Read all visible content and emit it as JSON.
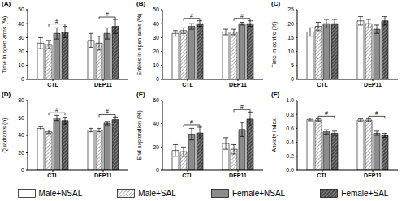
{
  "chart_data": [
    {
      "type": "bar",
      "title": "(A)",
      "ylabel": "Time in open arms (%)",
      "categories": [
        "CTL",
        "DEP11"
      ],
      "ylim": [
        0,
        50
      ],
      "yticks": [
        0,
        10,
        20,
        30,
        40,
        50
      ],
      "grid": false,
      "series": [
        {
          "name": "Male+NSAL",
          "color": "#ffffff",
          "values": [
            26,
            28
          ],
          "errors": [
            4,
            5
          ]
        },
        {
          "name": "Male+SAL",
          "color": "#ffffff",
          "values": [
            25,
            26
          ],
          "errors": [
            3,
            5
          ]
        },
        {
          "name": "Female+NSAL",
          "color": "#8c8c8c",
          "values": [
            33,
            33
          ],
          "errors": [
            4,
            4
          ]
        },
        {
          "name": "Female+SAL",
          "color": "#4d4d4d",
          "values": [
            34,
            38
          ],
          "errors": [
            4,
            5
          ]
        }
      ],
      "annotations": [
        {
          "category": "CTL",
          "from": "Male+SAL",
          "to": "Female+SAL",
          "text": "#"
        },
        {
          "category": "DEP11",
          "from": "Male+SAL",
          "to": "Female+SAL",
          "text": "#"
        }
      ]
    },
    {
      "type": "bar",
      "title": "(B)",
      "ylabel": "Entries in open arms (%)",
      "categories": [
        "CTL",
        "DEP11"
      ],
      "ylim": [
        0,
        50
      ],
      "yticks": [
        0,
        10,
        20,
        30,
        40,
        50
      ],
      "grid": false,
      "series": [
        {
          "name": "Male+NSAL",
          "color": "#ffffff",
          "values": [
            33,
            34
          ],
          "errors": [
            2,
            2
          ]
        },
        {
          "name": "Male+SAL",
          "color": "#ffffff",
          "values": [
            35,
            34
          ],
          "errors": [
            2,
            2
          ]
        },
        {
          "name": "Female+NSAL",
          "color": "#8c8c8c",
          "values": [
            38,
            40
          ],
          "errors": [
            2,
            1
          ]
        },
        {
          "name": "Female+SAL",
          "color": "#4d4d4d",
          "values": [
            40,
            40
          ],
          "errors": [
            2,
            2
          ]
        }
      ],
      "annotations": [
        {
          "category": "CTL",
          "from": "Male+SAL",
          "to": "Female+SAL",
          "text": "#"
        },
        {
          "category": "DEP11",
          "from": "Male+SAL",
          "to": "Female+SAL",
          "text": "#"
        }
      ]
    },
    {
      "type": "bar",
      "title": "(C)",
      "ylabel": "Time in centre (%)",
      "categories": [
        "CTL",
        "DEP11"
      ],
      "ylim": [
        0,
        25
      ],
      "yticks": [
        0,
        5,
        10,
        15,
        20,
        25
      ],
      "grid": false,
      "series": [
        {
          "name": "Male+NSAL",
          "color": "#ffffff",
          "values": [
            17,
            21
          ],
          "errors": [
            1.5,
            1.5
          ]
        },
        {
          "name": "Male+SAL",
          "color": "#ffffff",
          "values": [
            19,
            20
          ],
          "errors": [
            1.5,
            1.5
          ]
        },
        {
          "name": "Female+NSAL",
          "color": "#8c8c8c",
          "values": [
            20,
            18
          ],
          "errors": [
            1.5,
            1.5
          ]
        },
        {
          "name": "Female+SAL",
          "color": "#4d4d4d",
          "values": [
            20,
            21
          ],
          "errors": [
            1.5,
            1.5
          ]
        }
      ],
      "annotations": []
    },
    {
      "type": "bar",
      "title": "(D)",
      "ylabel": "Quadrants (n)",
      "categories": [
        "CTL",
        "DEP11"
      ],
      "ylim": [
        0,
        80
      ],
      "yticks": [
        0,
        20,
        40,
        60,
        80
      ],
      "grid": false,
      "series": [
        {
          "name": "Male+NSAL",
          "color": "#ffffff",
          "values": [
            48,
            46
          ],
          "errors": [
            2,
            2
          ]
        },
        {
          "name": "Male+SAL",
          "color": "#ffffff",
          "values": [
            44,
            46
          ],
          "errors": [
            2,
            2
          ]
        },
        {
          "name": "Female+NSAL",
          "color": "#8c8c8c",
          "values": [
            60,
            54
          ],
          "errors": [
            3,
            2
          ]
        },
        {
          "name": "Female+SAL",
          "color": "#4d4d4d",
          "values": [
            57,
            58
          ],
          "errors": [
            4,
            3
          ]
        }
      ],
      "annotations": [
        {
          "category": "CTL",
          "from": "Male+SAL",
          "to": "Female+SAL",
          "text": "#"
        },
        {
          "category": "DEP11",
          "from": "Male+SAL",
          "to": "Female+SAL",
          "text": "#"
        }
      ]
    },
    {
      "type": "bar",
      "title": "(E)",
      "ylabel": "End exploration (%)",
      "categories": [
        "CTL",
        "DEP11"
      ],
      "ylim": [
        0,
        60
      ],
      "yticks": [
        0,
        20,
        40,
        60
      ],
      "grid": false,
      "series": [
        {
          "name": "Male+NSAL",
          "color": "#ffffff",
          "values": [
            17,
            23
          ],
          "errors": [
            5,
            5
          ]
        },
        {
          "name": "Male+SAL",
          "color": "#ffffff",
          "values": [
            16,
            18
          ],
          "errors": [
            4,
            4
          ]
        },
        {
          "name": "Female+NSAL",
          "color": "#8c8c8c",
          "values": [
            31,
            35
          ],
          "errors": [
            5,
            6
          ]
        },
        {
          "name": "Female+SAL",
          "color": "#4d4d4d",
          "values": [
            32,
            44
          ],
          "errors": [
            5,
            6
          ]
        }
      ],
      "annotations": [
        {
          "category": "CTL",
          "from": "Male+SAL",
          "to": "Female+SAL",
          "text": "#"
        },
        {
          "category": "DEP11",
          "from": "Male+SAL",
          "to": "Female+SAL",
          "text": "#"
        }
      ]
    },
    {
      "type": "bar",
      "title": "(F)",
      "ylabel": "Anxiety index",
      "categories": [
        "CTL",
        "DEP11"
      ],
      "ylim": [
        0,
        1
      ],
      "yticks": [
        {
          "value": 0,
          "label": "0.0"
        },
        0.2,
        0.4,
        0.6,
        0.8,
        {
          "value": 1,
          "label": "1.0"
        }
      ],
      "grid": false,
      "series": [
        {
          "name": "Male+NSAL",
          "color": "#ffffff",
          "values": [
            0.73,
            0.72
          ],
          "errors": [
            0.02,
            0.02
          ]
        },
        {
          "name": "Male+SAL",
          "color": "#ffffff",
          "values": [
            0.72,
            0.72
          ],
          "errors": [
            0.02,
            0.02
          ]
        },
        {
          "name": "Female+NSAL",
          "color": "#8c8c8c",
          "values": [
            0.55,
            0.53
          ],
          "errors": [
            0.03,
            0.03
          ]
        },
        {
          "name": "Female+SAL",
          "color": "#4d4d4d",
          "values": [
            0.53,
            0.5
          ],
          "errors": [
            0.03,
            0.03
          ]
        }
      ],
      "annotations": [
        {
          "category": "CTL",
          "from": "Male+SAL",
          "to": "Female+SAL",
          "text": "#"
        },
        {
          "category": "DEP11",
          "from": "Male+SAL",
          "to": "Female+SAL",
          "text": "#"
        }
      ]
    }
  ]
}
